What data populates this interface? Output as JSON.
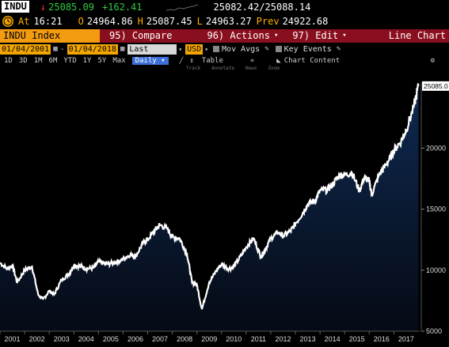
{
  "header": {
    "ticker": "INDU",
    "arrow": "↓",
    "last_price": "25085.09",
    "change": "+162.41",
    "bid_ask": "25082.42/25088.14"
  },
  "quote": {
    "at_label": "At",
    "time": "16:21",
    "open_label": "O",
    "open": "24964.86",
    "high_label": "H",
    "high": "25087.45",
    "low_label": "L",
    "low": "24963.27",
    "prev_label": "Prev",
    "prev": "24922.68"
  },
  "menubar": {
    "security": "INDU Index",
    "compare": "95) Compare",
    "actions": "96) Actions",
    "edit": "97) Edit",
    "chart_type": "Line Chart"
  },
  "toolbar": {
    "start_date": "01/04/2001",
    "end_date": "01/04/2018",
    "field": "Last Price",
    "currency": "USD",
    "mov_avgs": "Mov Avgs",
    "key_events": "Key Events"
  },
  "periods": {
    "items": [
      "1D",
      "3D",
      "1M",
      "6M",
      "YTD",
      "1Y",
      "5Y",
      "Max"
    ],
    "frequency": "Daily",
    "table": "Table",
    "chart_content": "Chart Content"
  },
  "tools": [
    "Track",
    "Annotate",
    "News",
    "Zoom"
  ],
  "colors": {
    "background": "#000000",
    "plot_top": "#0f2a52",
    "plot_bottom": "#050a14",
    "line": "#ffffff",
    "menubar": "#8a0f1e",
    "accent_orange": "#f39c12",
    "last_price_label": "#ffffff"
  },
  "chart_data": {
    "type": "area",
    "series": [],
    "x": [
      2001.0,
      2001.3,
      2001.5,
      2001.7,
      2002.0,
      2002.3,
      2002.55,
      2002.75,
      2003.0,
      2003.2,
      2003.5,
      2003.8,
      2004.0,
      2004.3,
      2004.5,
      2004.8,
      2005.0,
      2005.3,
      2005.6,
      2005.9,
      2006.0,
      2006.3,
      2006.5,
      2006.8,
      2007.0,
      2007.3,
      2007.5,
      2007.8,
      2008.0,
      2008.3,
      2008.6,
      2008.8,
      2009.0,
      2009.2,
      2009.5,
      2009.8,
      2010.0,
      2010.3,
      2010.5,
      2010.8,
      2011.0,
      2011.3,
      2011.6,
      2011.8,
      2012.0,
      2012.3,
      2012.5,
      2012.8,
      2013.0,
      2013.3,
      2013.5,
      2013.8,
      2014.0,
      2014.3,
      2014.5,
      2014.8,
      2015.0,
      2015.3,
      2015.6,
      2015.8,
      2016.0,
      2016.1,
      2016.4,
      2016.6,
      2016.85,
      2017.0,
      2017.3,
      2017.5,
      2017.8,
      2018.0
    ],
    "y": [
      10600,
      10100,
      10400,
      9000,
      10000,
      10300,
      8000,
      7600,
      8300,
      8000,
      9200,
      9700,
      10400,
      10300,
      10100,
      10200,
      10700,
      10500,
      10600,
      10800,
      10900,
      11300,
      11100,
      12200,
      12500,
      13300,
      13700,
      13400,
      12700,
      12600,
      11300,
      9000,
      8800,
      6800,
      9000,
      10000,
      10500,
      10100,
      10300,
      11200,
      11900,
      12600,
      11100,
      11800,
      12600,
      13100,
      12800,
      13200,
      13800,
      14700,
      15400,
      15700,
      16500,
      16600,
      17000,
      17800,
      17800,
      18000,
      16500,
      17600,
      17300,
      16200,
      17800,
      18400,
      19200,
      19800,
      20600,
      21500,
      23300,
      25085
    ],
    "ylim": [
      5000,
      25400
    ],
    "xlim": [
      2001.0,
      2018.05
    ],
    "yticks": [
      "5000",
      "10000",
      "15000",
      "20000"
    ],
    "xticks": [
      "2001",
      "2002",
      "2003",
      "2004",
      "2005",
      "2006",
      "2007",
      "2008",
      "2009",
      "2010",
      "2011",
      "2012",
      "2013",
      "2014",
      "2015",
      "2016",
      "2017"
    ],
    "last_value_label": "25085.0",
    "grid": false
  }
}
